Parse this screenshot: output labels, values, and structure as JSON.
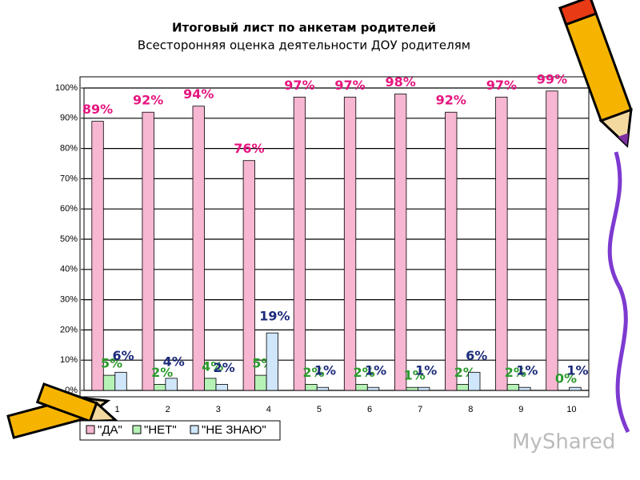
{
  "chart_data": {
    "type": "bar",
    "title": "Итоговый лист по анкетам родителей",
    "subtitle": "Всесторонняя оценка деятельности ДОУ родителям",
    "categories": [
      "1",
      "2",
      "3",
      "4",
      "5",
      "6",
      "7",
      "8",
      "9",
      "10"
    ],
    "series": [
      {
        "name": "\"ДА\"",
        "color": "#f7b6d2",
        "label_color": "#e6157f",
        "values": [
          89,
          92,
          94,
          76,
          97,
          97,
          98,
          92,
          97,
          99
        ],
        "value_labels": [
          "89%",
          "92%",
          "94%",
          "76%",
          "97%",
          "97%",
          "98%",
          "92%",
          "97%",
          "99%"
        ]
      },
      {
        "name": "\"НЕТ\"",
        "color": "#b6f2b6",
        "label_color": "#2b9a2b",
        "values": [
          5,
          2,
          4,
          5,
          2,
          2,
          1,
          2,
          2,
          0
        ],
        "value_labels": [
          "5%",
          "2%",
          "4%",
          "5%",
          "2%",
          "2%",
          "1%",
          "2%",
          "2%",
          "0%"
        ]
      },
      {
        "name": "\"НЕ ЗНАЮ\"",
        "color": "#cfe6fb",
        "label_color": "#1c2a7a",
        "values": [
          6,
          4,
          2,
          19,
          1,
          1,
          1,
          6,
          1,
          1
        ],
        "value_labels": [
          "6%",
          "4%",
          "2%",
          "19%",
          "1%",
          "1%",
          "1%",
          "6%",
          "1%",
          "1%"
        ]
      }
    ],
    "ylim": [
      0,
      100
    ],
    "yticks": [
      {
        "value": 0,
        "label": "0%"
      },
      {
        "value": 10,
        "label": "10%"
      },
      {
        "value": 20,
        "label": "20%"
      },
      {
        "value": 30,
        "label": "30%"
      },
      {
        "value": 40,
        "label": "40%"
      },
      {
        "value": 50,
        "label": "50%"
      },
      {
        "value": 60,
        "label": "60%"
      },
      {
        "value": 70,
        "label": "70%"
      },
      {
        "value": 80,
        "label": "80%"
      },
      {
        "value": 90,
        "label": "90%"
      },
      {
        "value": 100,
        "label": "100%"
      }
    ],
    "grid": true,
    "legend": "bottom",
    "watermark": "MyShared"
  }
}
